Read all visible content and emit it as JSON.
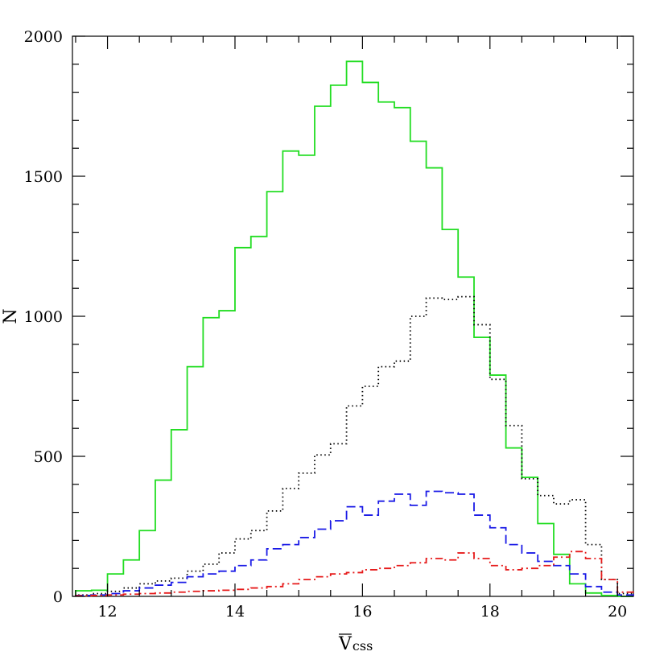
{
  "chart_data": {
    "type": "histogram",
    "xlabel": "V",
    "xlabel_subscript": "css",
    "xlabel_overbar": true,
    "ylabel": "N",
    "xlim": [
      11.45,
      20.25
    ],
    "ylim": [
      0,
      2000
    ],
    "x_major_ticks": [
      12,
      14,
      16,
      18,
      20
    ],
    "x_tick_labels": [
      "12",
      "14",
      "16",
      "18",
      "20"
    ],
    "y_major_ticks": [
      0,
      500,
      1000,
      1500,
      2000
    ],
    "y_tick_labels": [
      "0",
      "500",
      "1000",
      "1500",
      "2000"
    ],
    "x_minor_step": 0.5,
    "y_minor_step": 100,
    "grid": false,
    "legend": "none",
    "bin_edges": [
      11.5,
      11.75,
      12.0,
      12.25,
      12.5,
      12.75,
      13.0,
      13.25,
      13.5,
      13.75,
      14.0,
      14.25,
      14.5,
      14.75,
      15.0,
      15.25,
      15.5,
      15.75,
      16.0,
      16.25,
      16.5,
      16.75,
      17.0,
      17.25,
      17.5,
      17.75,
      18.0,
      18.25,
      18.5,
      18.75,
      19.0,
      19.25,
      19.5,
      19.75,
      20.0,
      20.25
    ],
    "series": [
      {
        "color": "#22dd22",
        "style": "solid",
        "values": [
          20,
          22,
          80,
          130,
          235,
          415,
          595,
          820,
          995,
          1020,
          1245,
          1285,
          1445,
          1590,
          1575,
          1750,
          1825,
          1910,
          1835,
          1765,
          1745,
          1625,
          1530,
          1310,
          1140,
          925,
          790,
          530,
          425,
          260,
          150,
          45,
          12,
          3,
          0
        ]
      },
      {
        "color": "#000000",
        "style": "dotted",
        "values": [
          5,
          10,
          18,
          30,
          45,
          55,
          65,
          90,
          115,
          155,
          205,
          235,
          305,
          385,
          440,
          505,
          545,
          680,
          750,
          820,
          840,
          1000,
          1065,
          1060,
          1070,
          970,
          775,
          610,
          420,
          360,
          330,
          345,
          185,
          60,
          10
        ]
      },
      {
        "color": "#1a1ae6",
        "style": "dashed",
        "values": [
          3,
          5,
          10,
          20,
          30,
          40,
          50,
          70,
          80,
          90,
          110,
          130,
          170,
          185,
          210,
          240,
          270,
          320,
          290,
          340,
          365,
          325,
          375,
          370,
          365,
          290,
          245,
          185,
          155,
          125,
          110,
          80,
          35,
          15,
          5
        ]
      },
      {
        "color": "#e61a1a",
        "style": "dashdot",
        "values": [
          2,
          3,
          5,
          8,
          10,
          12,
          15,
          18,
          20,
          22,
          25,
          30,
          35,
          45,
          60,
          70,
          80,
          85,
          95,
          100,
          110,
          120,
          135,
          130,
          155,
          135,
          110,
          95,
          100,
          110,
          140,
          160,
          135,
          60,
          15
        ]
      }
    ]
  }
}
